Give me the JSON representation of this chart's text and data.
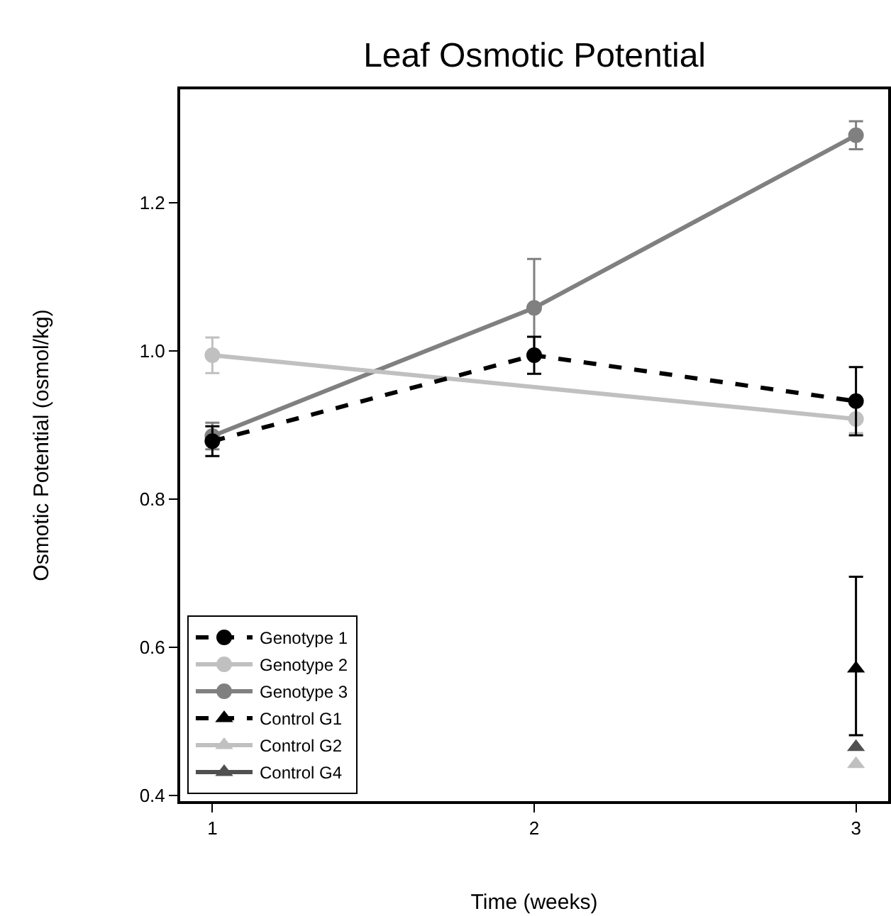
{
  "chart_data": {
    "type": "line",
    "title": "Leaf Osmotic Potential",
    "xlabel": "Time (weeks)",
    "ylabel": "Osmotic Potential (osmol/kg)",
    "xlim": [
      0.9,
      3.1
    ],
    "xticks": [
      1,
      2,
      3
    ],
    "ylim": [
      0.392,
      1.353
    ],
    "yticks": [
      {
        "value": 0.4,
        "label": "0.4"
      },
      {
        "value": 0.6,
        "label": "0.6"
      },
      {
        "value": 0.8,
        "label": "0.8"
      },
      {
        "value": 1.0,
        "label": "1.0"
      },
      {
        "value": 1.2,
        "label": "1.2"
      }
    ],
    "legend": "bottom left",
    "series": [
      {
        "name": "Genotype 1",
        "color": "#000000",
        "x": [
          1,
          2,
          3
        ],
        "values": [
          0.878,
          0.994,
          0.932
        ],
        "errors": [
          0.02,
          0.025,
          0.046
        ],
        "marker": "circle",
        "line_style": "dashed"
      },
      {
        "name": "Genotype 2",
        "color": "#c0c0c0",
        "x": [
          1,
          3
        ],
        "values": [
          0.994,
          0.908
        ],
        "errors": [
          0.024,
          0.019
        ],
        "marker": "circle",
        "line_style": "solid"
      },
      {
        "name": "Genotype 3",
        "color": "#808080",
        "x": [
          1,
          2,
          3
        ],
        "values": [
          0.885,
          1.058,
          1.291
        ],
        "errors": [
          0.018,
          0.066,
          0.019
        ],
        "marker": "circle",
        "line_style": "solid"
      },
      {
        "name": "Control G1",
        "color": "#000000",
        "x": [
          3
        ],
        "values": [
          0.571
        ],
        "errors": [
          [
            0.481,
            0.695
          ]
        ],
        "marker": "triangle",
        "line_style": "dashed"
      },
      {
        "name": "Control G2",
        "color": "#c0c0c0",
        "x": [
          3
        ],
        "values": [
          0.442
        ],
        "marker": "triangle",
        "line_style": "solid"
      },
      {
        "name": "Control G4",
        "color": "#505050",
        "x": [
          3
        ],
        "values": [
          0.465
        ],
        "marker": "triangle",
        "line_style": "solid"
      }
    ]
  }
}
